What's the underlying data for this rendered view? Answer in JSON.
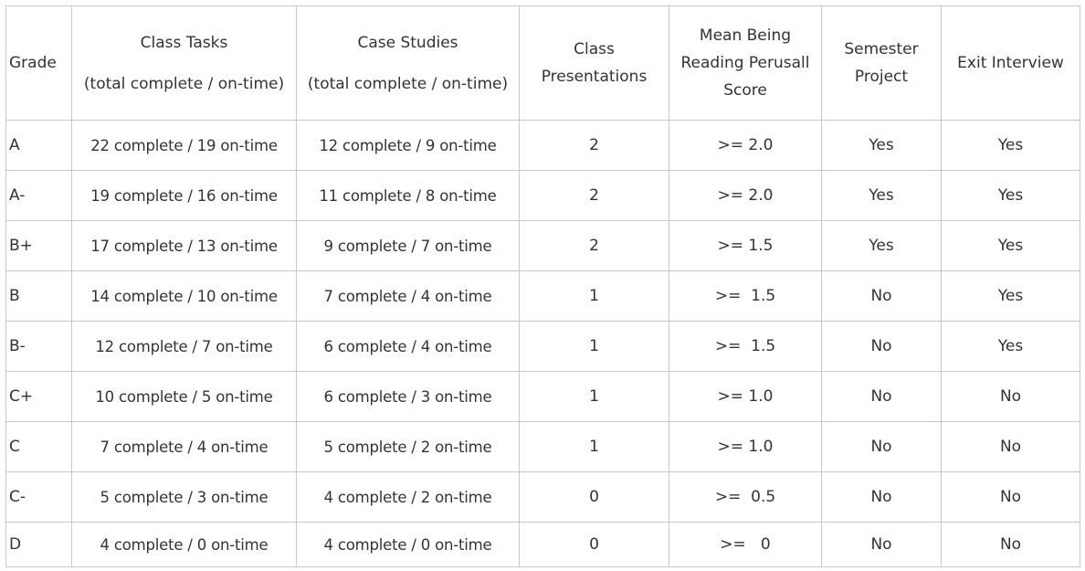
{
  "headers": {
    "grade": "Grade",
    "class_tasks": [
      "Class Tasks",
      "(total complete / on-time)"
    ],
    "case_studies": [
      "Case Studies",
      "(total complete / on-time)"
    ],
    "class_presentations": [
      "Class",
      "Presentations"
    ],
    "mean_reading_score": [
      "Mean Being",
      "Reading Perusall",
      "Score"
    ],
    "semester_project": [
      "Semester",
      "Project"
    ],
    "exit_interview": "Exit Interview"
  },
  "rows": [
    {
      "grade": "A",
      "class_tasks": "22 complete / 19 on-time",
      "case_studies": "12 complete / 9 on-time",
      "presentations": "2",
      "reading": ">= 2.0",
      "semester_project": "Yes",
      "exit_interview": "Yes"
    },
    {
      "grade": "A-",
      "class_tasks": "19 complete / 16 on-time",
      "case_studies": "11 complete / 8 on-time",
      "presentations": "2",
      "reading": ">= 2.0",
      "semester_project": "Yes",
      "exit_interview": "Yes"
    },
    {
      "grade": "B+",
      "class_tasks": "17 complete / 13 on-time",
      "case_studies": "9 complete / 7 on-time",
      "presentations": "2",
      "reading": ">= 1.5",
      "semester_project": "Yes",
      "exit_interview": "Yes"
    },
    {
      "grade": "B",
      "class_tasks": "14 complete / 10 on-time",
      "case_studies": "7 complete / 4 on-time",
      "presentations": "1",
      "reading": ">=  1.5",
      "semester_project": "No",
      "exit_interview": "Yes"
    },
    {
      "grade": "B-",
      "class_tasks": "12 complete / 7 on-time",
      "case_studies": "6 complete / 4 on-time",
      "presentations": "1",
      "reading": ">=  1.5",
      "semester_project": "No",
      "exit_interview": "Yes"
    },
    {
      "grade": "C+",
      "class_tasks": "10 complete / 5 on-time",
      "case_studies": "6 complete / 3 on-time",
      "presentations": "1",
      "reading": ">= 1.0",
      "semester_project": "No",
      "exit_interview": "No"
    },
    {
      "grade": "C",
      "class_tasks": "7 complete / 4 on-time",
      "case_studies": "5 complete / 2 on-time",
      "presentations": "1",
      "reading": ">= 1.0",
      "semester_project": "No",
      "exit_interview": "No"
    },
    {
      "grade": "C-",
      "class_tasks": "5 complete / 3 on-time",
      "case_studies": "4 complete / 2 on-time",
      "presentations": "0",
      "reading": ">=  0.5",
      "semester_project": "No",
      "exit_interview": "No"
    },
    {
      "grade": "D",
      "class_tasks": "4 complete / 0 on-time",
      "case_studies": "4 complete / 0 on-time",
      "presentations": "0",
      "reading": ">=   0",
      "semester_project": "No",
      "exit_interview": "No"
    }
  ]
}
